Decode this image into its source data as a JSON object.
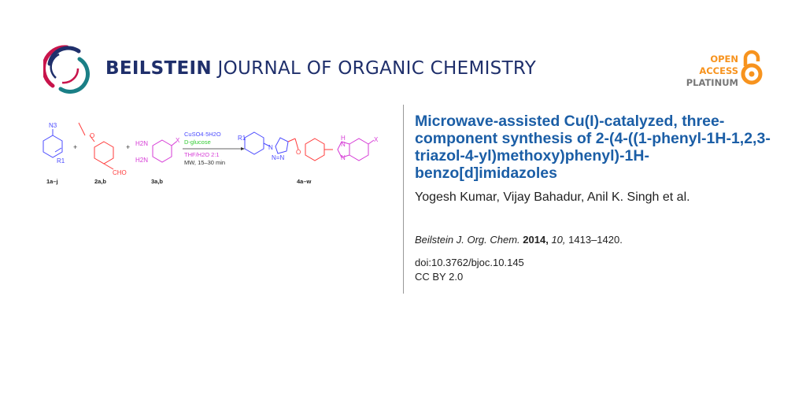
{
  "journal": {
    "name_bold": "BEILSTEIN",
    "name_rest": " JOURNAL OF ORGANIC CHEMISTRY",
    "brand_color": "#1f2f6b"
  },
  "open_access": {
    "line1": "OPEN",
    "line2": "ACCESS",
    "line3": "PLATINUM",
    "accent_color": "#f7931e",
    "icon": "open-padlock-icon"
  },
  "scheme": {
    "azide_label": "N3",
    "r1_label": "R1",
    "plus": "+",
    "cho_label": "CHO",
    "h2n_top": "H2N",
    "h2n_bottom": "H2N",
    "x_label": "X",
    "compound_labels": [
      "1a–j",
      "2a,b",
      "3a,b",
      "4a–w"
    ],
    "conditions": [
      "CuSO4·5H2O",
      "D-glucose",
      "THF/H2O 2:1",
      "MW, 15–30 min"
    ],
    "product_labels": {
      "r1": "R1",
      "n1": "N",
      "nn": "N=N",
      "o": "O",
      "nh": "H",
      "n_top": "N",
      "n_bottom": "N",
      "x": "X"
    },
    "colors": {
      "blue": "#4b4bff",
      "red": "#ff3b3b",
      "magenta": "#d63bd6",
      "green": "#33cc33"
    }
  },
  "article": {
    "title": "Microwave-assisted Cu(I)-catalyzed, three-component synthesis of 2-(4-((1-phenyl-1H-1,2,3-triazol-4-yl)methoxy)phenyl)-1H-benzo[d]imidazoles",
    "authors": "Yogesh Kumar, Vijay Bahadur, Anil K. Singh et al.",
    "citation": {
      "journal": "Beilstein J. Org. Chem.",
      "year": "2014,",
      "volume": "10,",
      "pages": "1413–1420."
    },
    "doi": "doi:10.3762/bjoc.10.145",
    "license": "CC BY 2.0"
  }
}
